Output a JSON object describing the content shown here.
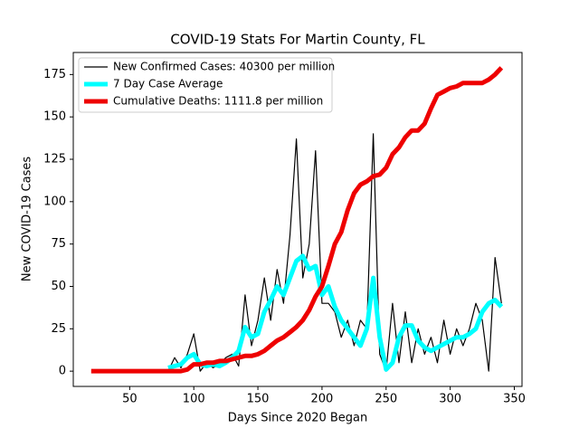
{
  "chart_data": {
    "type": "line",
    "title": "COVID-19 Stats For Martin County, FL",
    "x_label": "Days Since 2020 Began",
    "y_label": "New COVID-19 Cases",
    "x": [
      20,
      25,
      30,
      35,
      40,
      45,
      50,
      55,
      60,
      65,
      70,
      75,
      80,
      85,
      90,
      95,
      100,
      105,
      110,
      115,
      120,
      125,
      130,
      135,
      140,
      145,
      150,
      155,
      160,
      165,
      170,
      175,
      180,
      185,
      190,
      195,
      200,
      205,
      210,
      215,
      220,
      225,
      230,
      235,
      240,
      245,
      250,
      255,
      260,
      265,
      270,
      275,
      280,
      285,
      290,
      295,
      300,
      305,
      310,
      315,
      320,
      325,
      330,
      335,
      340
    ],
    "series": [
      {
        "name": "New Confirmed Cases: 40300 per million",
        "color": "#000000",
        "width": 1.2,
        "values": [
          null,
          null,
          null,
          null,
          null,
          null,
          null,
          null,
          null,
          null,
          null,
          null,
          0,
          8,
          2,
          10,
          22,
          0,
          5,
          2,
          4,
          8,
          10,
          3,
          45,
          15,
          30,
          55,
          30,
          60,
          40,
          80,
          137,
          55,
          75,
          130,
          40,
          40,
          35,
          20,
          30,
          15,
          30,
          25,
          140,
          10,
          0,
          40,
          5,
          35,
          5,
          25,
          10,
          20,
          5,
          30,
          10,
          25,
          15,
          25,
          40,
          30,
          0,
          67,
          40
        ]
      },
      {
        "name": "7 Day Case Average",
        "color": "#00ffff",
        "width": 5,
        "values": [
          null,
          null,
          null,
          null,
          null,
          null,
          null,
          null,
          null,
          null,
          null,
          null,
          2,
          3,
          4,
          8,
          10,
          4,
          3,
          4,
          3,
          5,
          8,
          12,
          26,
          20,
          22,
          35,
          42,
          50,
          45,
          55,
          65,
          68,
          60,
          62,
          45,
          50,
          38,
          30,
          25,
          20,
          15,
          25,
          55,
          20,
          1,
          5,
          20,
          27,
          27,
          18,
          14,
          12,
          14,
          16,
          18,
          20,
          20,
          22,
          25,
          35,
          40,
          42,
          38
        ]
      },
      {
        "name": "Cumulative Deaths: 1111.8 per million",
        "color": "#ee0000",
        "width": 5,
        "values": [
          0,
          0,
          0,
          0,
          0,
          0,
          0,
          0,
          0,
          0,
          0,
          0,
          0,
          0,
          0,
          1,
          4,
          4,
          5,
          5,
          6,
          6,
          7,
          8,
          9,
          9,
          10,
          12,
          15,
          18,
          20,
          23,
          26,
          30,
          36,
          44,
          50,
          62,
          75,
          82,
          95,
          105,
          110,
          112,
          115,
          116,
          120,
          128,
          132,
          138,
          142,
          142,
          146,
          155,
          163,
          165,
          167,
          168,
          170,
          170,
          170,
          170,
          172,
          175,
          179
        ]
      }
    ],
    "xlim": [
      6,
      356
    ],
    "ylim": [
      -9,
      188
    ],
    "xticks": [
      50,
      100,
      150,
      200,
      250,
      300,
      350
    ],
    "yticks": [
      0,
      25,
      50,
      75,
      100,
      125,
      150,
      175
    ],
    "legend": "upper left"
  }
}
